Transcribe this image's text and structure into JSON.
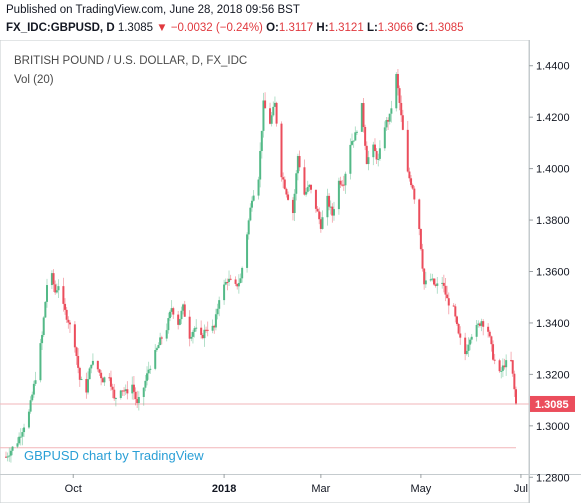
{
  "header": {
    "published": "Published on TradingView.com, June 28, 2018 09:56 BST",
    "symbol": "FX_IDC:GBPUSD, D",
    "last": "1.3085",
    "change_arrow": "▼",
    "change": "−0.0032 (−0.24%)",
    "open_label": "O:",
    "open": "1.3117",
    "high_label": "H:",
    "high": "1.3121",
    "low_label": "L:",
    "low": "1.3066",
    "close_label": "C:",
    "close": "1.3085"
  },
  "credit": "GBPUSD chart by TradingView",
  "colors": {
    "up": "#53b987",
    "down": "#eb4d5c",
    "price_label_bg": "#eb4d5c",
    "credit": "#2a9fd6"
  },
  "chart_data": {
    "type": "candlestick",
    "title": "BRITISH POUND / U.S. DOLLAR, D, FX_IDC",
    "subtitle": "Vol (20)",
    "ylim": [
      1.27,
      1.45
    ],
    "y_ticks": [
      "1.4400",
      "1.4200",
      "1.4000",
      "1.3800",
      "1.3600",
      "1.3400",
      "1.3200",
      "1.3000",
      "1.2800"
    ],
    "x_ticks": [
      "Oct",
      "2018",
      "Mar",
      "May",
      "Jul"
    ],
    "last_price": "1.3085",
    "last_price_value": 1.3085,
    "reference_line_value": 1.2915,
    "x_range": [
      "2017-08-21",
      "2018-06-28"
    ],
    "closes": [
      [
        "2017-08-21",
        1.288
      ],
      [
        "2017-08-28",
        1.294
      ],
      [
        "2017-09-04",
        1.305
      ],
      [
        "2017-09-08",
        1.319
      ],
      [
        "2017-09-12",
        1.335
      ],
      [
        "2017-09-15",
        1.355
      ],
      [
        "2017-09-18",
        1.358
      ],
      [
        "2017-09-20",
        1.352
      ],
      [
        "2017-09-22",
        1.355
      ],
      [
        "2017-09-25",
        1.346
      ],
      [
        "2017-09-28",
        1.341
      ],
      [
        "2017-10-02",
        1.332
      ],
      [
        "2017-10-05",
        1.318
      ],
      [
        "2017-10-09",
        1.314
      ],
      [
        "2017-10-12",
        1.325
      ],
      [
        "2017-10-16",
        1.322
      ],
      [
        "2017-10-19",
        1.318
      ],
      [
        "2017-10-23",
        1.32
      ],
      [
        "2017-10-26",
        1.31
      ],
      [
        "2017-10-30",
        1.315
      ],
      [
        "2017-11-02",
        1.313
      ],
      [
        "2017-11-06",
        1.316
      ],
      [
        "2017-11-09",
        1.308
      ],
      [
        "2017-11-13",
        1.315
      ],
      [
        "2017-11-16",
        1.322
      ],
      [
        "2017-11-20",
        1.328
      ],
      [
        "2017-11-23",
        1.333
      ],
      [
        "2017-11-27",
        1.338
      ],
      [
        "2017-11-30",
        1.346
      ],
      [
        "2017-12-04",
        1.34
      ],
      [
        "2017-12-07",
        1.346
      ],
      [
        "2017-12-11",
        1.335
      ],
      [
        "2017-12-14",
        1.338
      ],
      [
        "2017-12-18",
        1.334
      ],
      [
        "2017-12-21",
        1.338
      ],
      [
        "2017-12-26",
        1.338
      ],
      [
        "2017-12-29",
        1.35
      ],
      [
        "2018-01-03",
        1.357
      ],
      [
        "2018-01-08",
        1.354
      ],
      [
        "2018-01-11",
        1.357
      ],
      [
        "2018-01-15",
        1.375
      ],
      [
        "2018-01-18",
        1.389
      ],
      [
        "2018-01-22",
        1.397
      ],
      [
        "2018-01-25",
        1.425
      ],
      [
        "2018-01-29",
        1.418
      ],
      [
        "2018-02-01",
        1.425
      ],
      [
        "2018-02-05",
        1.398
      ],
      [
        "2018-02-08",
        1.391
      ],
      [
        "2018-02-12",
        1.383
      ],
      [
        "2018-02-15",
        1.405
      ],
      [
        "2018-02-19",
        1.39
      ],
      [
        "2018-02-22",
        1.393
      ],
      [
        "2018-02-26",
        1.385
      ],
      [
        "2018-03-01",
        1.378
      ],
      [
        "2018-03-05",
        1.388
      ],
      [
        "2018-03-08",
        1.382
      ],
      [
        "2018-03-12",
        1.395
      ],
      [
        "2018-03-15",
        1.395
      ],
      [
        "2018-03-19",
        1.41
      ],
      [
        "2018-03-22",
        1.413
      ],
      [
        "2018-03-26",
        1.424
      ],
      [
        "2018-03-29",
        1.403
      ],
      [
        "2018-04-02",
        1.408
      ],
      [
        "2018-04-05",
        1.403
      ],
      [
        "2018-04-09",
        1.417
      ],
      [
        "2018-04-12",
        1.42
      ],
      [
        "2018-04-16",
        1.436
      ],
      [
        "2018-04-19",
        1.42
      ],
      [
        "2018-04-23",
        1.398
      ],
      [
        "2018-04-26",
        1.393
      ],
      [
        "2018-04-30",
        1.377
      ],
      [
        "2018-05-03",
        1.355
      ],
      [
        "2018-05-07",
        1.357
      ],
      [
        "2018-05-10",
        1.354
      ],
      [
        "2018-05-14",
        1.356
      ],
      [
        "2018-05-17",
        1.349
      ],
      [
        "2018-05-21",
        1.345
      ],
      [
        "2018-05-24",
        1.335
      ],
      [
        "2018-05-28",
        1.328
      ],
      [
        "2018-05-31",
        1.335
      ],
      [
        "2018-06-04",
        1.338
      ],
      [
        "2018-06-07",
        1.341
      ],
      [
        "2018-06-11",
        1.337
      ],
      [
        "2018-06-14",
        1.327
      ],
      [
        "2018-06-18",
        1.32
      ],
      [
        "2018-06-21",
        1.324
      ],
      [
        "2018-06-25",
        1.325
      ],
      [
        "2018-06-28",
        1.3085
      ]
    ]
  }
}
